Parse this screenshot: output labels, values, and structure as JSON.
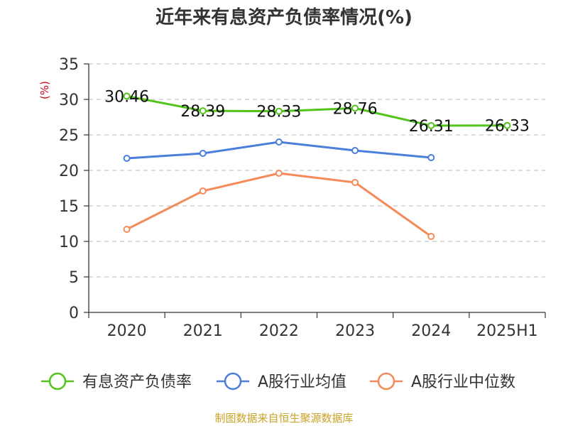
{
  "chart_data": {
    "type": "line",
    "title": "近年来有息资产负债率情况(%)",
    "unit_label": "(%)",
    "categories": [
      "2020",
      "2021",
      "2022",
      "2023",
      "2024",
      "2025H1"
    ],
    "ylim": [
      0,
      35
    ],
    "yticks": [
      0,
      5,
      10,
      15,
      20,
      25,
      30,
      35
    ],
    "grid": true,
    "legend_position": "bottom",
    "series": [
      {
        "name": "有息资产负债率",
        "color": "#52c41a",
        "values": [
          30.46,
          28.39,
          28.33,
          28.76,
          26.31,
          26.33
        ],
        "labels": [
          "30.46",
          "28.39",
          "28.33",
          "28.76",
          "26.31",
          "26.33"
        ]
      },
      {
        "name": "A股行业均值",
        "color": "#4a7fdb",
        "values": [
          21.7,
          22.4,
          24.0,
          22.8,
          21.8,
          null
        ]
      },
      {
        "name": "A股行业中位数",
        "color": "#f58b5a",
        "values": [
          11.7,
          17.1,
          19.6,
          18.3,
          10.7,
          null
        ]
      }
    ],
    "source": "制图数据来自恒生聚源数据库"
  }
}
